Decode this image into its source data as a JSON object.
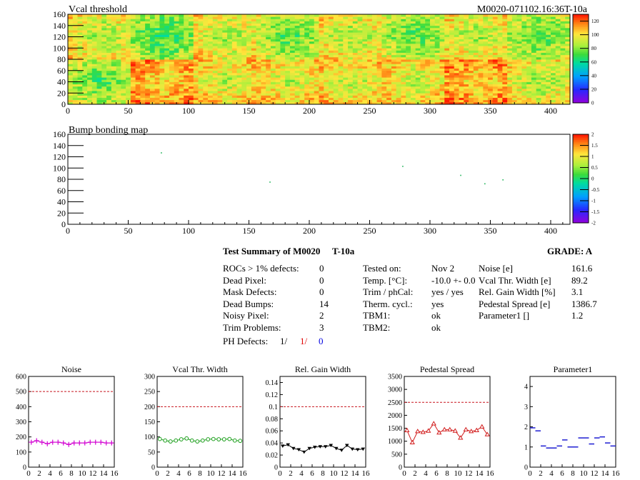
{
  "charts": {
    "vcal": {
      "title": "Vcal threshold",
      "corner_label": "M0020-071102.16:36T-10a",
      "x_ticks": [
        "0",
        "50",
        "100",
        "150",
        "200",
        "250",
        "300",
        "350",
        "400"
      ],
      "y_ticks": [
        "0",
        "20",
        "40",
        "60",
        "80",
        "100",
        "120",
        "140",
        "160"
      ],
      "z_ticks": [
        "0",
        "20",
        "40",
        "60",
        "80",
        "100",
        "120"
      ]
    },
    "bump": {
      "title": "Bump bonding map",
      "x_ticks": [
        "0",
        "50",
        "100",
        "150",
        "200",
        "250",
        "300",
        "350",
        "400"
      ],
      "y_ticks": [
        "0",
        "20",
        "40",
        "60",
        "80",
        "100",
        "120",
        "140",
        "160"
      ],
      "z_ticks": [
        "-2",
        "-1.5",
        "-1",
        "-0.5",
        "0",
        "0.5",
        "1",
        "1.5",
        "2"
      ]
    }
  },
  "chart_data": [
    {
      "type": "heatmap",
      "title": "Vcal threshold",
      "xlim": [
        0,
        416
      ],
      "ylim": [
        0,
        160
      ],
      "zlim": [
        0,
        130
      ],
      "roc_columns": [
        0,
        52,
        104,
        156,
        208,
        260,
        312,
        364,
        416
      ],
      "roc_rows": [
        0,
        80,
        160
      ],
      "roc_means_top": [
        95,
        80,
        95,
        85,
        95,
        85,
        95,
        85
      ],
      "roc_means_bottom": [
        85,
        110,
        100,
        100,
        100,
        100,
        110,
        95
      ]
    },
    {
      "type": "scatter",
      "title": "Bump bonding map",
      "xlim": [
        0,
        416
      ],
      "ylim": [
        0,
        160
      ],
      "zlim": [
        -2,
        2
      ],
      "points": [
        [
          77,
          128
        ],
        [
          167,
          76
        ],
        [
          277,
          104
        ],
        [
          325,
          88
        ],
        [
          345,
          73
        ],
        [
          360,
          80
        ]
      ]
    },
    {
      "type": "line",
      "title": "Noise",
      "xlim": [
        0,
        16
      ],
      "ylim": [
        0,
        600
      ],
      "x_ticks": [
        "0",
        "2",
        "4",
        "6",
        "8",
        "10",
        "12",
        "14",
        "16"
      ],
      "y_ticks": [
        "0",
        "100",
        "200",
        "300",
        "400",
        "500",
        "600"
      ],
      "threshold": 500,
      "color": "#d200d2",
      "marker": "cross",
      "values": [
        165,
        175,
        165,
        155,
        165,
        165,
        160,
        150,
        160,
        160,
        160,
        165,
        165,
        165,
        160,
        160
      ]
    },
    {
      "type": "line",
      "title": "Vcal Thr. Width",
      "xlim": [
        0,
        16
      ],
      "ylim": [
        0,
        300
      ],
      "x_ticks": [
        "0",
        "2",
        "4",
        "6",
        "8",
        "10",
        "12",
        "14",
        "16"
      ],
      "y_ticks": [
        "0",
        "50",
        "100",
        "150",
        "200",
        "250",
        "300"
      ],
      "threshold": 200,
      "color": "#1ea01e",
      "marker": "circle",
      "values": [
        93,
        88,
        85,
        88,
        92,
        95,
        88,
        85,
        88,
        92,
        93,
        92,
        92,
        93,
        88,
        87
      ]
    },
    {
      "type": "line",
      "title": "Rel. Gain Width",
      "xlim": [
        0,
        16
      ],
      "ylim": [
        0,
        0.15
      ],
      "x_ticks": [
        "0",
        "2",
        "4",
        "6",
        "8",
        "10",
        "12",
        "14",
        "16"
      ],
      "y_ticks": [
        "0",
        "0.02",
        "0.04",
        "0.06",
        "0.08",
        "0.1",
        "0.12",
        "0.14"
      ],
      "threshold": 0.1,
      "color": "#000000",
      "marker": "triangle",
      "values": [
        0.035,
        0.037,
        0.031,
        0.029,
        0.025,
        0.031,
        0.033,
        0.034,
        0.034,
        0.036,
        0.031,
        0.028,
        0.036,
        0.03,
        0.029,
        0.03
      ]
    },
    {
      "type": "line",
      "title": "Pedestal Spread",
      "xlim": [
        0,
        16
      ],
      "ylim": [
        0,
        3500
      ],
      "x_ticks": [
        "0",
        "2",
        "4",
        "6",
        "8",
        "10",
        "12",
        "14",
        "16"
      ],
      "y_ticks": [
        "0",
        "500",
        "1000",
        "1500",
        "2000",
        "2500",
        "3000",
        "3500"
      ],
      "threshold": 2500,
      "color": "#d21e1e",
      "marker": "triangle-open",
      "values": [
        1420,
        950,
        1380,
        1350,
        1400,
        1680,
        1330,
        1450,
        1450,
        1400,
        1130,
        1450,
        1380,
        1420,
        1560,
        1260
      ]
    },
    {
      "type": "scatter",
      "title": "Parameter1",
      "xlim": [
        0,
        16
      ],
      "ylim": [
        0,
        4.5
      ],
      "x_ticks": [
        "0",
        "2",
        "4",
        "6",
        "8",
        "10",
        "12",
        "14",
        "16"
      ],
      "y_ticks": [
        "0",
        "1",
        "2",
        "3",
        "4"
      ],
      "color": "#1e1ed2",
      "marker": "hbar",
      "values": [
        1.95,
        1.8,
        1.05,
        0.95,
        0.95,
        1.05,
        1.35,
        1.0,
        1.0,
        1.45,
        1.45,
        1.15,
        1.45,
        1.5,
        1.2,
        1.05
      ]
    }
  ],
  "summary": {
    "title": "Test Summary of M0020",
    "tag": "T-10a",
    "grade": "GRADE:  A",
    "left": [
      {
        "label": "ROCs > 1% defects:",
        "value": "0"
      },
      {
        "label": "Dead Pixel:",
        "value": "0"
      },
      {
        "label": "Mask Defects:",
        "value": "0"
      },
      {
        "label": "Dead Bumps:",
        "value": "14"
      },
      {
        "label": "Noisy Pixel:",
        "value": "2"
      },
      {
        "label": "Trim Problems:",
        "value": "3"
      }
    ],
    "ph": {
      "label": "PH Defects:",
      "v1": "1/",
      "v2": "1/",
      "v3": "0"
    },
    "middle": [
      {
        "label": "Tested on:",
        "value": "Nov 2"
      },
      {
        "label": "Temp. [°C]:",
        "value": "-10.0 +- 0.0"
      },
      {
        "label": "Trim / phCal:",
        "value": "yes / yes"
      },
      {
        "label": "Therm. cycl.:",
        "value": "yes"
      },
      {
        "label": "TBM1:",
        "value": "ok"
      },
      {
        "label": "TBM2:",
        "value": "ok"
      }
    ],
    "right": [
      {
        "label": "Noise [e]",
        "value": "161.6"
      },
      {
        "label": "Vcal Thr. Width [e]",
        "value": "89.2"
      },
      {
        "label": "Rel. Gain Width [%]",
        "value": "3.1"
      },
      {
        "label": "Pedestal Spread [e]",
        "value": "1386.7"
      },
      {
        "label": "Parameter1 []",
        "value": "1.2"
      }
    ]
  }
}
